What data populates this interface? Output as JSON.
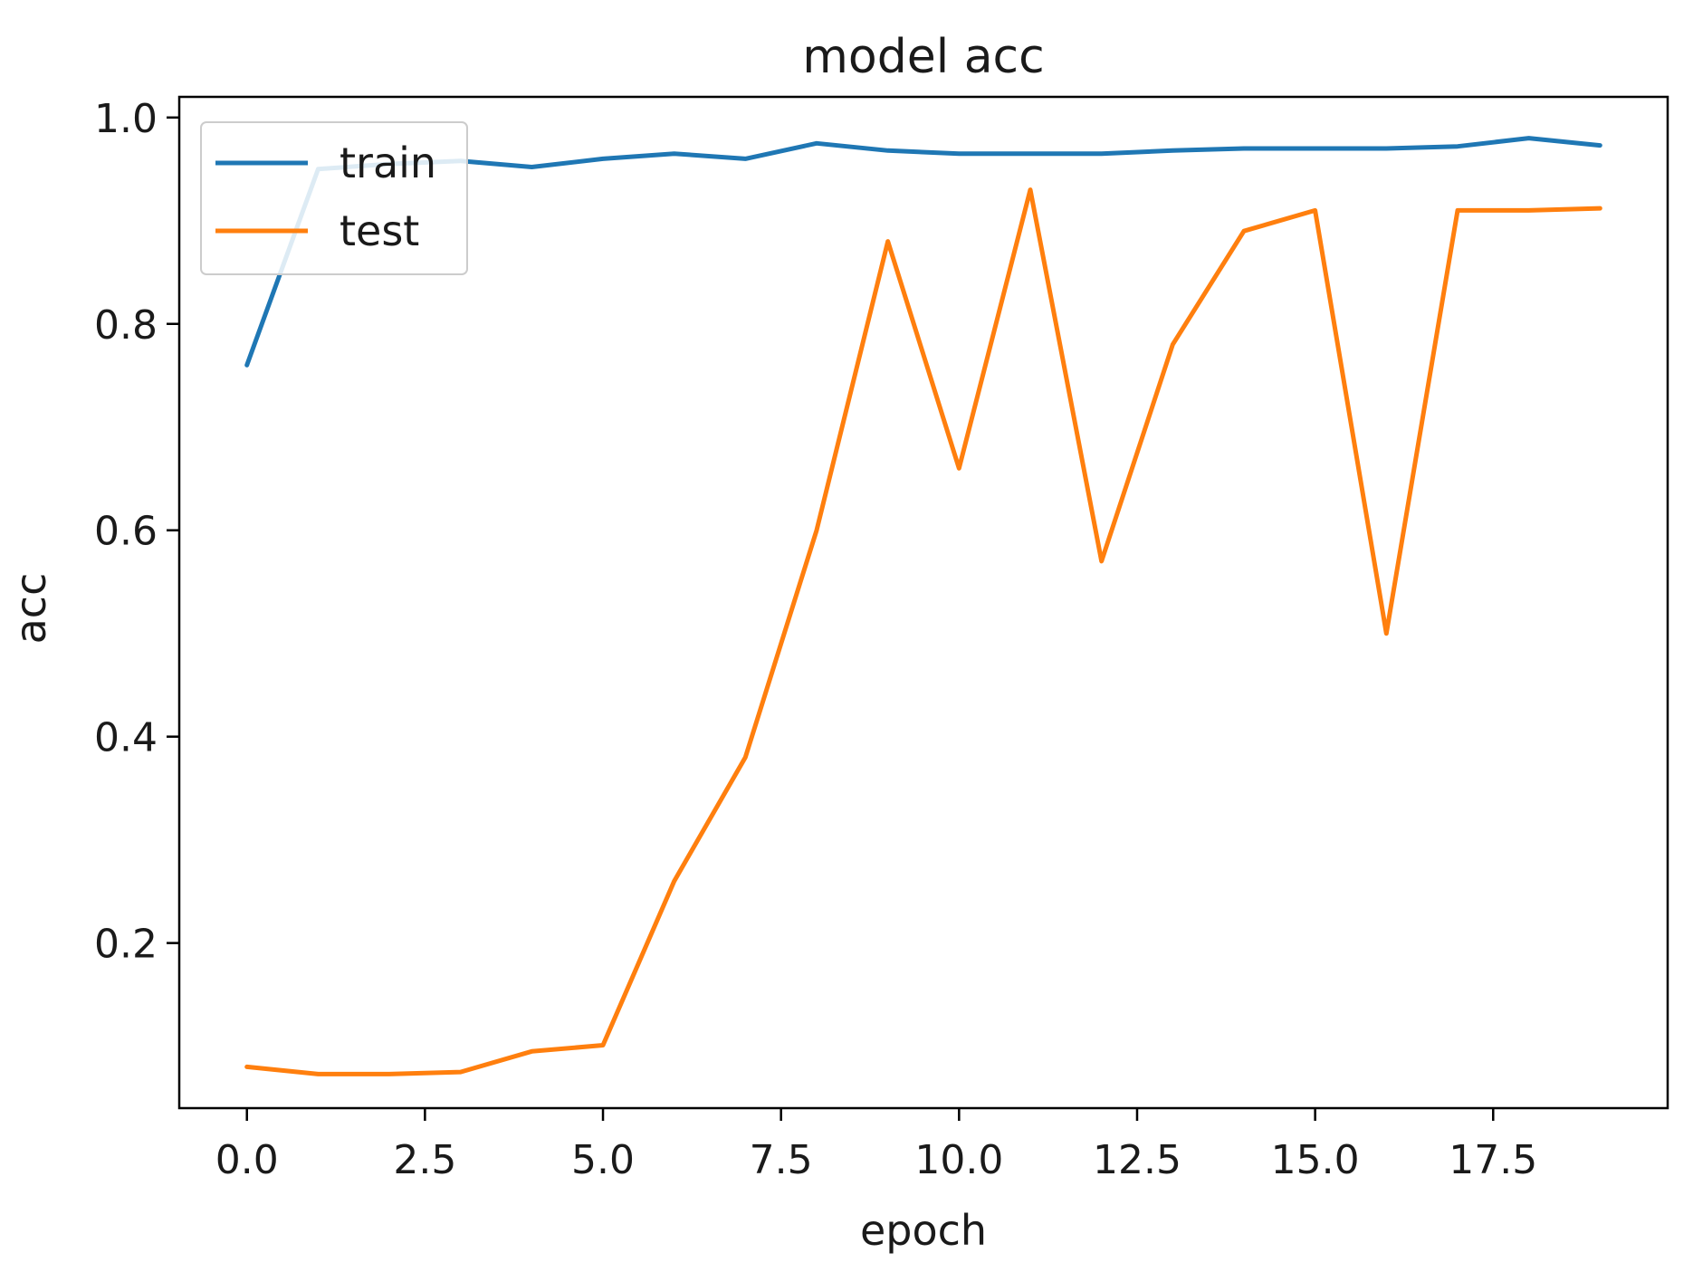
{
  "chart_data": {
    "type": "line",
    "title": "model acc",
    "xlabel": "epoch",
    "ylabel": "acc",
    "xlim": [
      -0.95,
      19.95
    ],
    "ylim": [
      0.04,
      1.02
    ],
    "xticks": [
      0,
      2.5,
      5,
      7.5,
      10,
      12.5,
      15,
      17.5
    ],
    "xtick_labels": [
      "0.0",
      "2.5",
      "5.0",
      "7.5",
      "10.0",
      "12.5",
      "15.0",
      "17.5"
    ],
    "yticks": [
      0.2,
      0.4,
      0.6,
      0.8,
      1.0
    ],
    "ytick_labels": [
      "0.2",
      "0.4",
      "0.6",
      "0.8",
      "1.0"
    ],
    "grid": false,
    "legend_position": "upper-left",
    "x": [
      0,
      1,
      2,
      3,
      4,
      5,
      6,
      7,
      8,
      9,
      10,
      11,
      12,
      13,
      14,
      15,
      16,
      17,
      18,
      19
    ],
    "series": [
      {
        "name": "train",
        "color": "#1f77b4",
        "values": [
          0.76,
          0.95,
          0.955,
          0.958,
          0.952,
          0.96,
          0.965,
          0.96,
          0.975,
          0.968,
          0.965,
          0.965,
          0.965,
          0.968,
          0.97,
          0.97,
          0.97,
          0.972,
          0.98,
          0.973
        ]
      },
      {
        "name": "test",
        "color": "#ff7f0e",
        "values": [
          0.08,
          0.073,
          0.073,
          0.075,
          0.095,
          0.101,
          0.26,
          0.38,
          0.6,
          0.88,
          0.66,
          0.93,
          0.57,
          0.78,
          0.89,
          0.91,
          0.5,
          0.91,
          0.91,
          0.912
        ]
      }
    ]
  }
}
